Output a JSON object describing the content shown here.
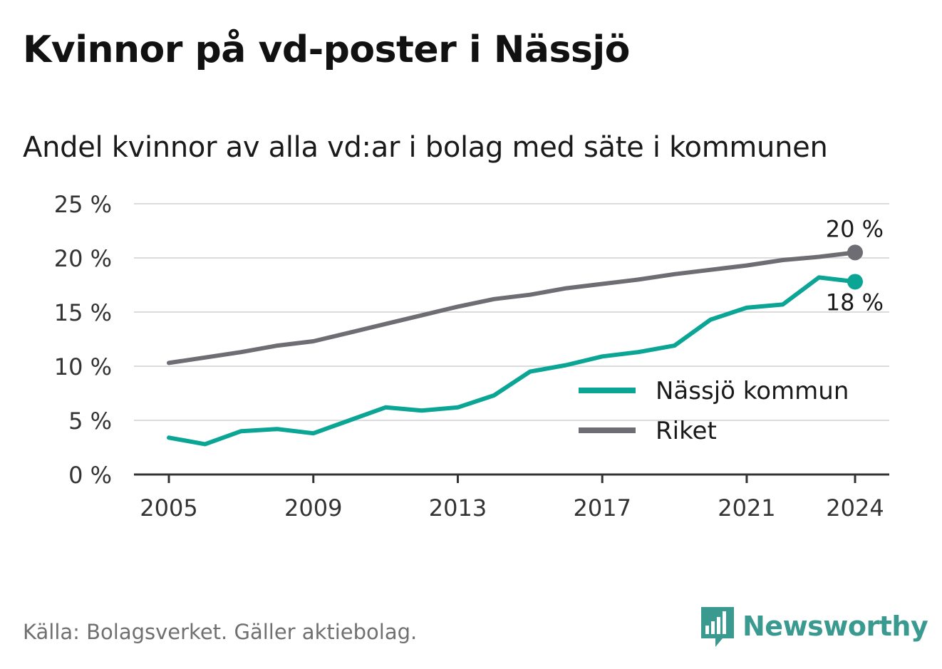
{
  "title": "Kvinnor på vd-poster i Nässjö",
  "subtitle": "Andel kvinnor av alla vd:ar i bolag med säte i kommunen",
  "source": "Källa: Bolagsverket. Gäller aktiebolag.",
  "brand": {
    "name": "Newsworthy",
    "icon": "newsworthy-logo-icon"
  },
  "colors": {
    "nassjo": "#0ba596",
    "riket": "#6e6d73",
    "grid": "#dcdcdc",
    "axis": "#333333",
    "text": "#333333"
  },
  "chart_data": {
    "type": "line",
    "title": "Kvinnor på vd-poster i Nässjö",
    "subtitle": "Andel kvinnor av alla vd:ar i bolag med säte i kommunen",
    "x": [
      2005,
      2006,
      2007,
      2008,
      2009,
      2010,
      2011,
      2012,
      2013,
      2014,
      2015,
      2016,
      2017,
      2018,
      2019,
      2020,
      2021,
      2022,
      2023,
      2024
    ],
    "x_ticks": [
      "2005",
      "2009",
      "2013",
      "2017",
      "2021",
      "2024"
    ],
    "y_ticks": [
      "0 %",
      "5 %",
      "10 %",
      "15 %",
      "20 %",
      "25 %"
    ],
    "ylim": [
      0,
      25
    ],
    "grid": true,
    "legend_position": "right",
    "series": [
      {
        "name": "Nässjö kommun",
        "color": "#0ba596",
        "values": [
          3.4,
          2.8,
          4.0,
          4.2,
          3.8,
          5.0,
          6.2,
          5.9,
          6.2,
          7.3,
          9.5,
          10.1,
          10.9,
          11.3,
          11.9,
          14.3,
          15.4,
          15.7,
          18.2,
          17.8
        ],
        "end_label": "18 %"
      },
      {
        "name": "Riket",
        "color": "#6e6d73",
        "values": [
          10.3,
          10.8,
          11.3,
          11.9,
          12.3,
          13.1,
          13.9,
          14.7,
          15.5,
          16.2,
          16.6,
          17.2,
          17.6,
          18.0,
          18.5,
          18.9,
          19.3,
          19.8,
          20.1,
          20.5
        ],
        "end_label": "20 %"
      }
    ]
  }
}
